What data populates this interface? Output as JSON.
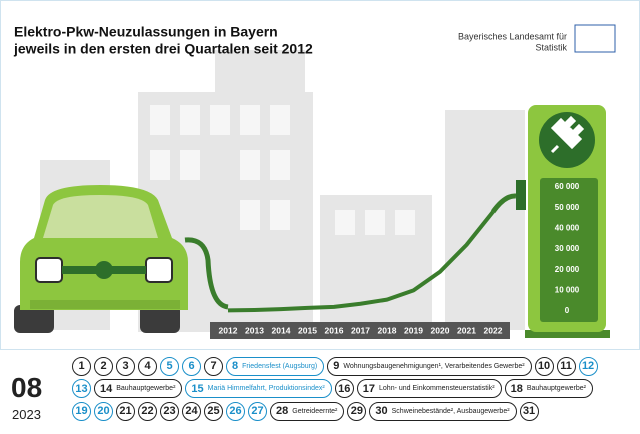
{
  "chart_data": {
    "type": "line",
    "title": "Elektro-Pkw-Neuzulassungen in Bayern",
    "subtitle": "jeweils in den ersten drei Quartalen seit 2012",
    "categories": [
      "2012",
      "2013",
      "2014",
      "2015",
      "2016",
      "2017",
      "2018",
      "2019",
      "2020",
      "2021",
      "2022"
    ],
    "values": [
      300,
      500,
      900,
      1500,
      2000,
      3500,
      5500,
      10000,
      19000,
      32000,
      48000
    ],
    "color": "#3a7d2c",
    "ylim": [
      0,
      60000
    ],
    "yticks": [
      0,
      {
        "value": 10000,
        "label": "10 000"
      },
      {
        "value": 20000,
        "label": "20 000"
      },
      {
        "value": 30000,
        "label": "30 000"
      },
      {
        "value": 40000,
        "label": "40 000"
      },
      {
        "value": 50000,
        "label": "50 000"
      },
      {
        "value": 60000,
        "label": "60 000"
      }
    ]
  },
  "publisher": {
    "line1": "Bayerisches Landesamt für",
    "line2": "Statistik"
  },
  "calendar": {
    "month": "08",
    "year": "2023",
    "rows": [
      [
        {
          "day": 1
        },
        {
          "day": 2
        },
        {
          "day": 3
        },
        {
          "day": 4
        },
        {
          "day": 5,
          "color": "#1a8fc9"
        },
        {
          "day": 6,
          "color": "#1a8fc9"
        },
        {
          "day": 7
        },
        {
          "day": 8,
          "note": "Friedensfest (Augsburg)",
          "color": "#1a8fc9"
        },
        {
          "day": 9,
          "note": "Wohnungsbaugenehmigungen¹, Verarbeitendes Gewerbe²"
        },
        {
          "day": 10
        },
        {
          "day": 11
        },
        {
          "day": 12,
          "color": "#1a8fc9"
        }
      ],
      [
        {
          "day": 13,
          "color": "#1a8fc9"
        },
        {
          "day": 14,
          "note": "Bauhauptgewerbe²"
        },
        {
          "day": 15,
          "note": "Mariä Himmelfahrt, Produktionsindex²",
          "color": "#1a8fc9"
        },
        {
          "day": 16
        },
        {
          "day": 17,
          "note": "Lohn- und Einkommensteuerstatistik²"
        },
        {
          "day": 18,
          "note": "Bauhauptgewerbe²"
        }
      ],
      [
        {
          "day": 19,
          "color": "#1a8fc9"
        },
        {
          "day": 20,
          "color": "#1a8fc9"
        },
        {
          "day": 21
        },
        {
          "day": 22
        },
        {
          "day": 23
        },
        {
          "day": 24
        },
        {
          "day": 25
        },
        {
          "day": 26,
          "color": "#1a8fc9"
        },
        {
          "day": 27,
          "color": "#1a8fc9"
        },
        {
          "day": 28,
          "note": "Getreideernte²"
        },
        {
          "day": 29
        },
        {
          "day": 30,
          "note": "Schweinebestände², Ausbaugewerbe²"
        },
        {
          "day": 31
        }
      ]
    ]
  }
}
